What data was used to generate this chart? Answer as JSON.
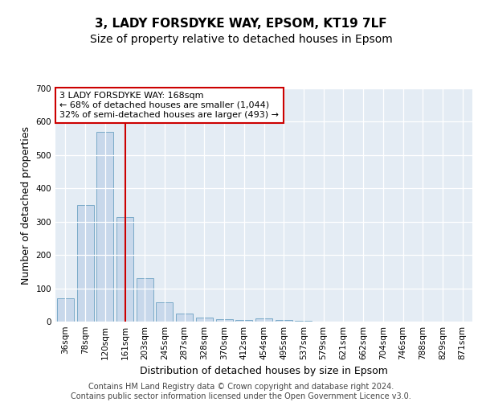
{
  "title_line1": "3, LADY FORSDYKE WAY, EPSOM, KT19 7LF",
  "title_line2": "Size of property relative to detached houses in Epsom",
  "xlabel": "Distribution of detached houses by size in Epsom",
  "ylabel": "Number of detached properties",
  "categories": [
    "36sqm",
    "78sqm",
    "120sqm",
    "161sqm",
    "203sqm",
    "245sqm",
    "287sqm",
    "328sqm",
    "370sqm",
    "412sqm",
    "454sqm",
    "495sqm",
    "537sqm",
    "579sqm",
    "621sqm",
    "662sqm",
    "704sqm",
    "746sqm",
    "788sqm",
    "829sqm",
    "871sqm"
  ],
  "values": [
    70,
    350,
    570,
    315,
    130,
    57,
    25,
    13,
    7,
    6,
    10,
    5,
    2,
    1,
    1,
    1,
    1,
    0,
    0,
    0,
    0
  ],
  "bar_color": "#c8d8eb",
  "bar_edge_color": "#7aaac8",
  "vline_x_index": 3,
  "vline_color": "#cc0000",
  "ylim": [
    0,
    700
  ],
  "yticks": [
    0,
    100,
    200,
    300,
    400,
    500,
    600,
    700
  ],
  "annotation_text": "3 LADY FORSDYKE WAY: 168sqm\n← 68% of detached houses are smaller (1,044)\n32% of semi-detached houses are larger (493) →",
  "annotation_box_facecolor": "#ffffff",
  "annotation_box_edgecolor": "#cc0000",
  "fig_facecolor": "#ffffff",
  "plot_facecolor": "#e4ecf4",
  "grid_color": "#ffffff",
  "title1_fontsize": 11,
  "title2_fontsize": 10,
  "axis_label_fontsize": 9,
  "tick_fontsize": 7.5,
  "annotation_fontsize": 8,
  "footer_fontsize": 7,
  "footer_text": "Contains HM Land Registry data © Crown copyright and database right 2024.\nContains public sector information licensed under the Open Government Licence v3.0."
}
